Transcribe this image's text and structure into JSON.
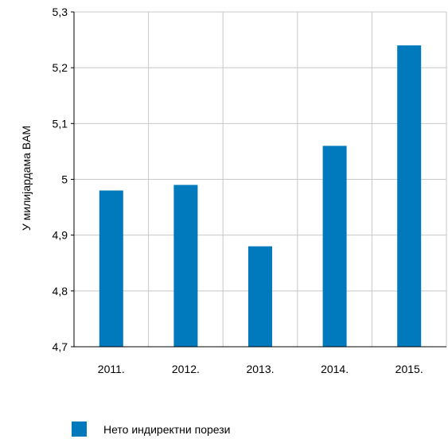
{
  "chart_data": {
    "type": "bar",
    "categories": [
      "2011.",
      "2012.",
      "2013.",
      "2014.",
      "2015."
    ],
    "series": [
      {
        "name": "Нето индиректни порези",
        "values": [
          4.98,
          4.99,
          4.88,
          5.06,
          5.24
        ],
        "color": "#0079bd"
      }
    ],
    "ylabel": "У милијардама BAM",
    "xlabel": "",
    "ylim": [
      4.7,
      5.3
    ],
    "yticks": [
      4.7,
      4.8,
      4.9,
      5.0,
      5.1,
      5.2,
      5.3
    ],
    "ytick_labels": [
      "4,7",
      "4,8",
      "4,9",
      "5",
      "5,1",
      "5,2",
      "5,3"
    ],
    "grid": true,
    "legend_position": "bottom-left"
  },
  "colors": {
    "bar": "#0079bd",
    "grid": "#c8c8c8",
    "axis": "#000000"
  }
}
